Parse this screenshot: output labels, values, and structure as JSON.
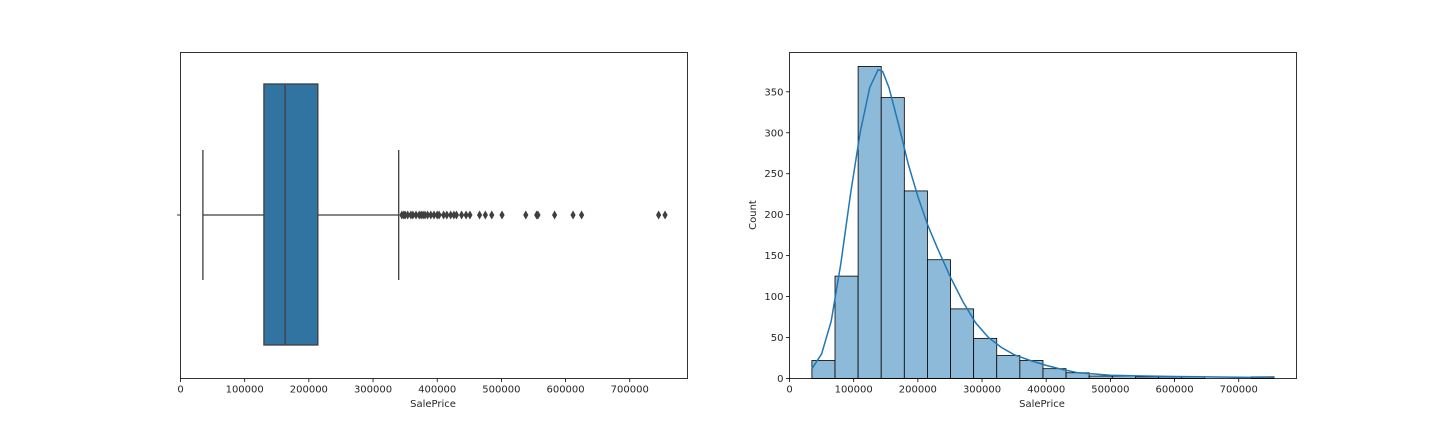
{
  "chart_data": [
    {
      "type": "box",
      "xlabel": "SalePrice",
      "ylabel": "",
      "xlim": [
        0,
        790000
      ],
      "xticks": [
        0,
        100000,
        200000,
        300000,
        400000,
        500000,
        600000,
        700000
      ],
      "xtick_labels": [
        "0",
        "100000",
        "200000",
        "300000",
        "400000",
        "500000",
        "600000",
        "700000"
      ],
      "box": {
        "whisker_low": 34900,
        "q1": 129975,
        "median": 163000,
        "q3": 214000,
        "whisker_high": 340000
      },
      "outliers": [
        345000,
        348000,
        350000,
        354000,
        359000,
        362000,
        367000,
        372000,
        375000,
        378000,
        381000,
        385000,
        390000,
        395000,
        400000,
        403000,
        410000,
        415000,
        421000,
        426000,
        430000,
        438000,
        445000,
        451000,
        466000,
        475000,
        485000,
        501000,
        538000,
        555000,
        557000,
        582933,
        611657,
        625000,
        745000,
        755000
      ],
      "color": "#3274a1",
      "line_color": "#3f3f3f"
    },
    {
      "type": "histogram",
      "xlabel": "SalePrice",
      "ylabel": "Count",
      "xlim": [
        0,
        790000
      ],
      "ylim": [
        0,
        398
      ],
      "xticks": [
        0,
        100000,
        200000,
        300000,
        400000,
        500000,
        600000,
        700000
      ],
      "xtick_labels": [
        "0",
        "100000",
        "200000",
        "300000",
        "400000",
        "500000",
        "600000",
        "700000"
      ],
      "yticks": [
        0,
        50,
        100,
        150,
        200,
        250,
        300,
        350
      ],
      "ytick_labels": [
        "0",
        "50",
        "100",
        "150",
        "200",
        "250",
        "300",
        "350"
      ],
      "bin_start": 34900,
      "bin_width": 36005,
      "counts": [
        22,
        125,
        381,
        343,
        229,
        145,
        85,
        49,
        28,
        22,
        12,
        7,
        3,
        3,
        2,
        2,
        2,
        0,
        0,
        2
      ],
      "kde": [
        [
          34900,
          12
        ],
        [
          50000,
          30
        ],
        [
          65000,
          70
        ],
        [
          80000,
          140
        ],
        [
          95000,
          225
        ],
        [
          110000,
          300
        ],
        [
          125000,
          355
        ],
        [
          138000,
          377
        ],
        [
          145000,
          375
        ],
        [
          155000,
          355
        ],
        [
          170000,
          310
        ],
        [
          185000,
          262
        ],
        [
          200000,
          222
        ],
        [
          215000,
          188
        ],
        [
          230000,
          160
        ],
        [
          250000,
          125
        ],
        [
          270000,
          94
        ],
        [
          290000,
          68
        ],
        [
          310000,
          50
        ],
        [
          330000,
          38
        ],
        [
          350000,
          29
        ],
        [
          375000,
          22
        ],
        [
          400000,
          16
        ],
        [
          425000,
          11
        ],
        [
          450000,
          7
        ],
        [
          500000,
          4
        ],
        [
          550000,
          3
        ],
        [
          600000,
          2.5
        ],
        [
          650000,
          2
        ],
        [
          700000,
          1.5
        ],
        [
          755000,
          1
        ]
      ],
      "bar_color": "#8ebad9",
      "kde_color": "#1f77b4"
    }
  ]
}
